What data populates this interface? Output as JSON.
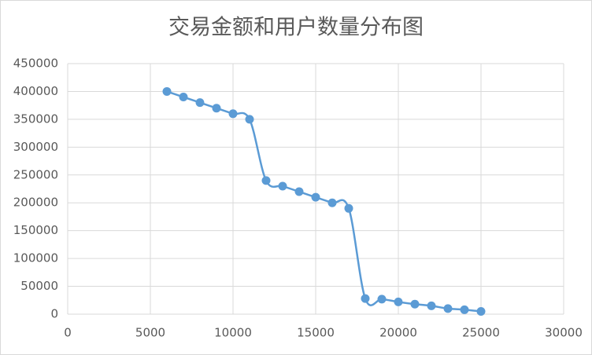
{
  "chart_data": {
    "type": "scatter-smooth",
    "title": "交易金额和用户数量分布图",
    "x": [
      6000,
      7000,
      8000,
      9000,
      10000,
      11000,
      12000,
      13000,
      14000,
      15000,
      16000,
      17000,
      18000,
      19000,
      20000,
      21000,
      22000,
      23000,
      24000,
      25000
    ],
    "values": [
      400000,
      390000,
      380000,
      370000,
      360000,
      350000,
      240000,
      230000,
      220000,
      210000,
      200000,
      190000,
      28000,
      27000,
      22000,
      18000,
      15000,
      10000,
      8000,
      5000
    ],
    "color": "#5b9bd5",
    "xlim": [
      0,
      30000
    ],
    "xticks": [
      0,
      5000,
      10000,
      15000,
      20000,
      25000,
      30000
    ],
    "ylim": [
      0,
      450000
    ],
    "yticks": [
      0,
      50000,
      100000,
      150000,
      200000,
      250000,
      300000,
      350000,
      400000,
      450000
    ],
    "grid": true
  }
}
